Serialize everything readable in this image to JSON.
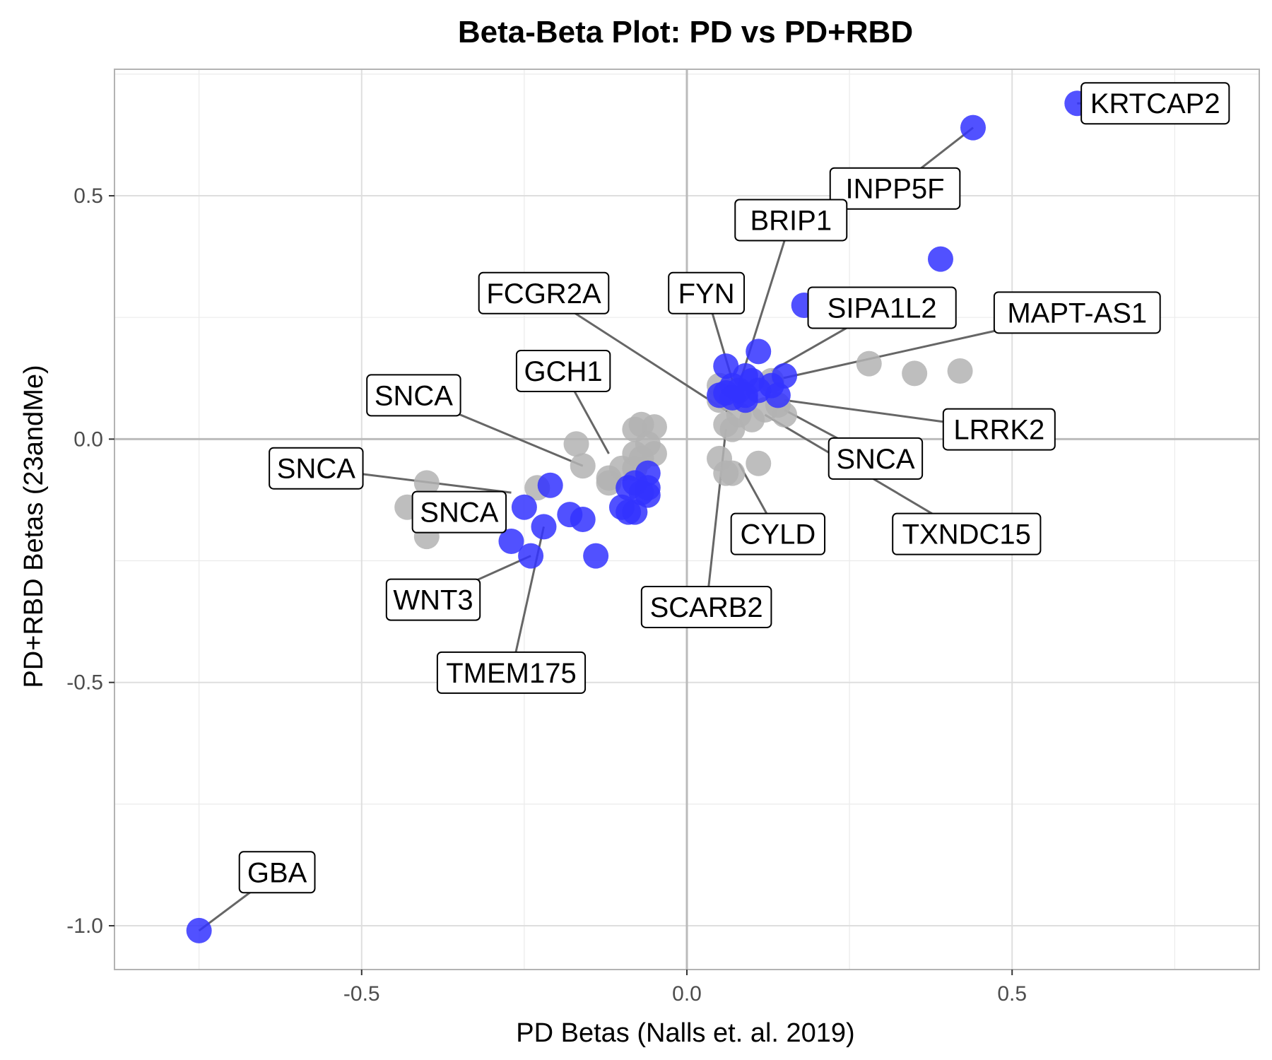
{
  "chart_data": {
    "type": "scatter",
    "title": "Beta-Beta Plot: PD vs PD+RBD",
    "xlabel": "PD Betas (Nalls et. al. 2019)",
    "ylabel": "PD+RBD Betas (23andMe)",
    "xlim": [
      -0.88,
      0.88
    ],
    "ylim": [
      -1.09,
      0.76
    ],
    "x_ticks": [
      -0.5,
      0.0,
      0.5
    ],
    "y_ticks": [
      -1.0,
      -0.5,
      0.0,
      0.5
    ],
    "x_tick_labels": [
      "-0.5",
      "0.0",
      "0.5"
    ],
    "y_tick_labels": [
      "-1.0",
      "-0.5",
      "0.0",
      "0.5"
    ],
    "grid": true,
    "colors": {
      "significant": "#3333ff",
      "not_significant": "#b3b3b3",
      "connector": "#666666",
      "grid": "#ebebeb",
      "zero_line": "#bbbbbb"
    },
    "series": [
      {
        "color": "#b3b3b3",
        "points": [
          [
            0.28,
            0.155
          ],
          [
            0.35,
            0.135
          ],
          [
            0.42,
            0.14
          ],
          [
            0.12,
            0.06
          ],
          [
            0.15,
            0.05
          ],
          [
            0.1,
            0.04
          ],
          [
            0.14,
            0.07
          ],
          [
            0.07,
            0.02
          ],
          [
            0.08,
            0.05
          ],
          [
            0.06,
            0.03
          ],
          [
            0.05,
            -0.04
          ],
          [
            0.06,
            -0.07
          ],
          [
            0.07,
            -0.07
          ],
          [
            0.11,
            -0.05
          ],
          [
            0.05,
            0.08
          ],
          [
            0.05,
            0.11
          ],
          [
            0.06,
            0.09
          ],
          [
            0.13,
            0.12
          ],
          [
            -0.07,
            0.03
          ],
          [
            -0.05,
            0.025
          ],
          [
            -0.08,
            0.02
          ],
          [
            -0.06,
            -0.01
          ],
          [
            -0.05,
            -0.03
          ],
          [
            -0.08,
            -0.03
          ],
          [
            -0.1,
            -0.06
          ],
          [
            -0.12,
            -0.09
          ],
          [
            -0.12,
            -0.08
          ],
          [
            -0.08,
            -0.06
          ],
          [
            -0.07,
            -0.04
          ],
          [
            -0.17,
            -0.01
          ],
          [
            -0.16,
            -0.055
          ],
          [
            -0.23,
            -0.1
          ],
          [
            -0.4,
            -0.09
          ],
          [
            -0.43,
            -0.14
          ],
          [
            -0.4,
            -0.2
          ]
        ]
      },
      {
        "color": "#3333ff",
        "points": [
          [
            -0.75,
            -1.01
          ],
          [
            0.6,
            0.69
          ],
          [
            0.44,
            0.64
          ],
          [
            0.39,
            0.37
          ],
          [
            0.18,
            0.275
          ],
          [
            0.11,
            0.18
          ],
          [
            0.06,
            0.15
          ],
          [
            0.09,
            0.13
          ],
          [
            0.15,
            0.13
          ],
          [
            0.07,
            0.11
          ],
          [
            0.1,
            0.12
          ],
          [
            0.05,
            0.09
          ],
          [
            0.08,
            0.1
          ],
          [
            0.13,
            0.11
          ],
          [
            0.09,
            0.09
          ],
          [
            0.06,
            0.095
          ],
          [
            0.14,
            0.09
          ],
          [
            0.07,
            0.085
          ],
          [
            0.11,
            0.1
          ],
          [
            0.09,
            0.08
          ],
          [
            -0.06,
            -0.07
          ],
          [
            -0.08,
            -0.09
          ],
          [
            -0.06,
            -0.1
          ],
          [
            -0.07,
            -0.11
          ],
          [
            -0.06,
            -0.115
          ],
          [
            -0.09,
            -0.1
          ],
          [
            -0.1,
            -0.14
          ],
          [
            -0.09,
            -0.15
          ],
          [
            -0.08,
            -0.15
          ],
          [
            -0.21,
            -0.095
          ],
          [
            -0.25,
            -0.14
          ],
          [
            -0.18,
            -0.155
          ],
          [
            -0.16,
            -0.165
          ],
          [
            -0.22,
            -0.18
          ],
          [
            -0.27,
            -0.21
          ],
          [
            -0.24,
            -0.24
          ],
          [
            -0.14,
            -0.24
          ]
        ]
      }
    ],
    "annotations": [
      {
        "text": "KRTCAP2",
        "point": [
          0.6,
          0.69
        ],
        "label": [
          0.72,
          0.69
        ]
      },
      {
        "text": "INPP5F",
        "point": [
          0.44,
          0.64
        ],
        "label": [
          0.32,
          0.515
        ]
      },
      {
        "text": "BRIP1",
        "point": [
          0.08,
          0.11
        ],
        "label": [
          0.16,
          0.45
        ]
      },
      {
        "text": "FCGR2A",
        "point": [
          0.07,
          0.05
        ],
        "label": [
          -0.22,
          0.3
        ]
      },
      {
        "text": "FYN",
        "point": [
          0.07,
          0.12
        ],
        "label": [
          0.03,
          0.3
        ]
      },
      {
        "text": "SIPA1L2",
        "point": [
          0.13,
          0.14
        ],
        "label": [
          0.3,
          0.27
        ]
      },
      {
        "text": "MAPT-AS1",
        "point": [
          0.13,
          0.12
        ],
        "label": [
          0.6,
          0.26
        ]
      },
      {
        "text": "GCH1",
        "point": [
          -0.12,
          -0.03
        ],
        "label": [
          -0.19,
          0.14
        ]
      },
      {
        "text": "SNCA",
        "point": [
          -0.16,
          -0.055
        ],
        "label": [
          -0.42,
          0.09
        ]
      },
      {
        "text": "LRRK2",
        "point": [
          0.15,
          0.08
        ],
        "label": [
          0.48,
          0.02
        ]
      },
      {
        "text": "SNCA",
        "point": [
          0.15,
          0.06
        ],
        "label": [
          0.29,
          -0.04
        ]
      },
      {
        "text": "SNCA",
        "point": [
          -0.27,
          -0.11
        ],
        "label": [
          -0.57,
          -0.06
        ]
      },
      {
        "text": "SNCA",
        "point": [
          -0.33,
          -0.13
        ],
        "label": [
          -0.35,
          -0.15
        ]
      },
      {
        "text": "CYLD",
        "point": [
          0.08,
          -0.05
        ],
        "label": [
          0.14,
          -0.195
        ]
      },
      {
        "text": "TXNDC15",
        "point": [
          0.12,
          0.05
        ],
        "label": [
          0.43,
          -0.195
        ]
      },
      {
        "text": "SCARB2",
        "point": [
          0.06,
          0.02
        ],
        "label": [
          0.03,
          -0.345
        ]
      },
      {
        "text": "WNT3",
        "point": [
          -0.24,
          -0.24
        ],
        "label": [
          -0.39,
          -0.33
        ]
      },
      {
        "text": "TMEM175",
        "point": [
          -0.22,
          -0.18
        ],
        "label": [
          -0.27,
          -0.48
        ]
      },
      {
        "text": "GBA",
        "point": [
          -0.75,
          -1.01
        ],
        "label": [
          -0.63,
          -0.89
        ]
      }
    ]
  }
}
